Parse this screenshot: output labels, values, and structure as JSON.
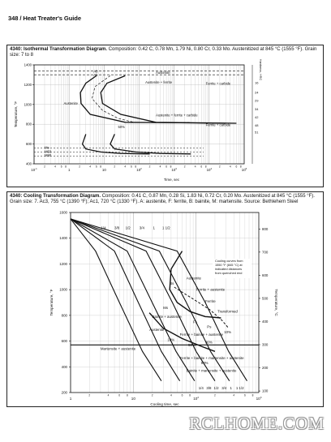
{
  "page": {
    "header": "348 / Heat Treater's Guide",
    "watermark": "RCLHOME.COM"
  },
  "figure1": {
    "caption_title": "4340: Isothermal Transformation Diagram.",
    "caption_text": "Composition: 0.42 C, 0.78 Mn, 1.79 Ni, 0.80 Cr, 0.33 Mo. Austenitized at 845 °C (1555 °F). Grain size: 7 to 8"
  },
  "figure2": {
    "caption_title": "4340: Cooling Transformation Diagram.",
    "caption_text": "Composition: 0.41 C, 0.87 Mn, 0.28 Si, 1.83 Ni, 0.72 Cr, 0.20 Mo. Austenitized at 845 °C (1555 °F). Grain size: 7. Ac3, 755 °C (1390 °F); Ac1, 720 °C (1330 °F). A: austenite, F: ferrite, B: bainite, M: martensite. Source: Bethlehem Steel"
  },
  "chart_data": [
    {
      "type": "line",
      "title": "",
      "xlabel": "Time, sec",
      "ylabel": "Temperature, °F",
      "y2label": "Hardness, HRC",
      "xscale": "log",
      "xlim": [
        0.1,
        100000
      ],
      "ylim": [
        400,
        1400
      ],
      "x_ticks": [
        "10^-1",
        "1",
        "10",
        "10^2",
        "10^3",
        "10^4",
        "10^5"
      ],
      "y_ticks": [
        400,
        600,
        800,
        1000,
        1200,
        1400
      ],
      "hrc_ticks": [
        16,
        24,
        29,
        34,
        42,
        48,
        51
      ],
      "annotations": [
        "A3",
        "A1",
        "Austenite",
        "Austenite + ferrite",
        "Ferrite + carbide",
        "Austenite + ferrite + carbide",
        "Ferrite + carbide",
        "50%",
        "Ms",
        "M50",
        "M90"
      ],
      "series": [
        {
          "name": "",
          "x": [
            6,
            3,
            2.1,
            2.2,
            4,
            40,
            1500,
            30000
          ],
          "y": [
            1290,
            1215,
            1120,
            1010,
            900,
            820,
            815,
            810
          ]
        },
        {
          "name": "",
          "x": [
            40,
            12,
            8,
            9,
            30,
            300,
            4000,
            60000
          ],
          "y": [
            1290,
            1215,
            1120,
            1010,
            900,
            820,
            815,
            810
          ]
        },
        {
          "name": "",
          "x": [
            3,
            2.4,
            3,
            8,
            30,
            200
          ],
          "y": [
            700,
            600,
            550,
            520,
            505,
            500
          ]
        },
        {
          "name": "",
          "x": [
            20,
            15,
            20,
            80,
            400,
            3000
          ],
          "y": [
            700,
            600,
            550,
            520,
            505,
            500
          ]
        }
      ]
    },
    {
      "type": "line",
      "title": "",
      "xlabel": "Cooling time, sec",
      "ylabel": "Temperature, °F",
      "y2label": "Temperature, °C",
      "xscale": "log",
      "xlim": [
        1,
        1000
      ],
      "ylim": [
        200,
        1600
      ],
      "x_ticks": [
        "1",
        "10",
        "10^2",
        "10^3"
      ],
      "y_ticks": [
        200,
        400,
        600,
        800,
        1000,
        1200,
        1400,
        1600
      ],
      "c_ticks": [
        100,
        200,
        300,
        400,
        500,
        600,
        700,
        800
      ],
      "curve_labels_top": [
        "1/4",
        "3/8",
        "1/2",
        "3/4",
        "1",
        "1 1/2"
      ],
      "curve_labels_bottom": [
        "1/4",
        "3/8",
        "1/2",
        "3/4",
        "1",
        "1 1/2"
      ],
      "annotations": [
        "Cooling curves from 1550 °F (845 °C) at indicated distances from quenched end",
        "Austenite",
        "Ferrite + austenite",
        "Ferrite",
        "Transformed",
        "Austenite",
        "Bainite + austenite",
        "Ferrite + bainite + austenite",
        "Martensite + austenite",
        "Ferrite + bainite + martensite + austenite",
        "Bainite + martensite + austenite",
        "Bs",
        "Ms",
        "Fs",
        "Ps",
        "10%",
        "90%",
        "50%",
        "10%",
        "90%"
      ],
      "series": [
        {
          "name": "1/4",
          "x": [
            1,
            2.5,
            6,
            14,
            28
          ],
          "y": [
            1550,
            1300,
            900,
            520,
            290
          ]
        },
        {
          "name": "3/8",
          "x": [
            1,
            5,
            12,
            28,
            55
          ],
          "y": [
            1550,
            1300,
            900,
            520,
            290
          ]
        },
        {
          "name": "1/2",
          "x": [
            1,
            8,
            20,
            48,
            95
          ],
          "y": [
            1550,
            1300,
            900,
            520,
            290
          ]
        },
        {
          "name": "3/4",
          "x": [
            1,
            16,
            42,
            100,
            200
          ],
          "y": [
            1550,
            1300,
            900,
            520,
            290
          ]
        },
        {
          "name": "1",
          "x": [
            1,
            26,
            70,
            170,
            340
          ],
          "y": [
            1550,
            1300,
            900,
            520,
            290
          ]
        },
        {
          "name": "1 1/2",
          "x": [
            1,
            50,
            140,
            330,
            650
          ],
          "y": [
            1550,
            1300,
            900,
            520,
            290
          ]
        }
      ]
    }
  ]
}
